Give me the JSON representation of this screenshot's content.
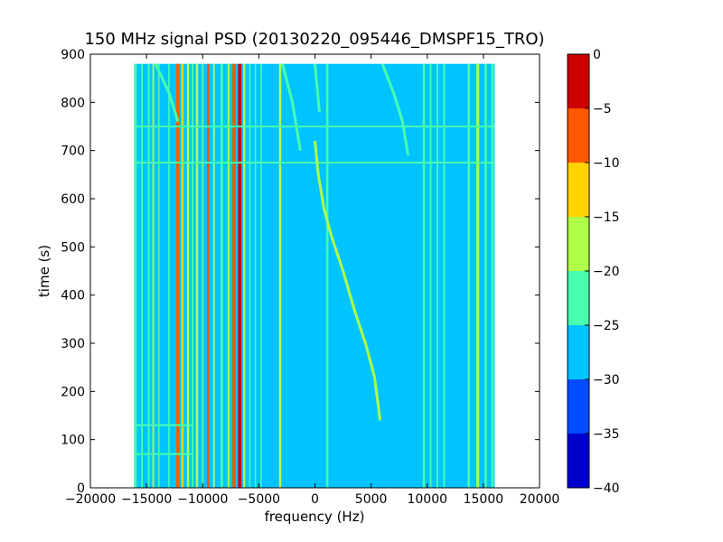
{
  "chart_data": {
    "type": "heatmap",
    "title": "150 MHz signal PSD (20130220_095446_DMSPF15_TRO)",
    "xlabel": "frequency (Hz)",
    "ylabel": "time (s)",
    "xlim": [
      -20000,
      20000
    ],
    "ylim": [
      0,
      900
    ],
    "xticks": [
      -20000,
      -15000,
      -10000,
      -5000,
      0,
      5000,
      10000,
      15000,
      20000
    ],
    "xtick_labels": [
      "−20000",
      "−15000",
      "−10000",
      "−5000",
      "0",
      "5000",
      "10000",
      "15000",
      "20000"
    ],
    "yticks": [
      0,
      100,
      200,
      300,
      400,
      500,
      600,
      700,
      800,
      900
    ],
    "ytick_labels": [
      "0",
      "100",
      "200",
      "300",
      "400",
      "500",
      "600",
      "700",
      "800",
      "900"
    ],
    "data_extent": {
      "x": [
        -16000,
        16000
      ],
      "y": [
        0,
        880
      ]
    },
    "background_level": -27.5,
    "colorbar": {
      "levels": [
        -40,
        -35,
        -30,
        -25,
        -20,
        -15,
        -10,
        -5,
        0
      ],
      "tick_labels": [
        "−40",
        "−35",
        "−30",
        "−25",
        "−20",
        "−15",
        "−10",
        "−5",
        "0"
      ],
      "colors": [
        "#0000cd",
        "#004cff",
        "#00c4ff",
        "#48ffae",
        "#b0ff48",
        "#ffd200",
        "#ff5800",
        "#cd0000"
      ]
    },
    "vertical_lines": [
      {
        "x": -16000,
        "w": 250,
        "level": -22.5
      },
      {
        "x": -15400,
        "w": 150,
        "level": -22.5
      },
      {
        "x": -14800,
        "w": 150,
        "level": -22.5
      },
      {
        "x": -14400,
        "w": 150,
        "level": -17.5
      },
      {
        "x": -13900,
        "w": 120,
        "level": -22.5
      },
      {
        "x": -13000,
        "w": 120,
        "level": -22.5
      },
      {
        "x": -12200,
        "w": 300,
        "level": -7.5
      },
      {
        "x": -11800,
        "w": 200,
        "level": -12.5
      },
      {
        "x": -11300,
        "w": 200,
        "level": -17.5
      },
      {
        "x": -10900,
        "w": 150,
        "level": -22.5
      },
      {
        "x": -10500,
        "w": 200,
        "level": -17.5
      },
      {
        "x": -10000,
        "w": 150,
        "level": -22.5
      },
      {
        "x": -9500,
        "w": 250,
        "level": -7.5
      },
      {
        "x": -9000,
        "w": 150,
        "level": -17.5
      },
      {
        "x": -8300,
        "w": 200,
        "level": -22.5
      },
      {
        "x": -7700,
        "w": 150,
        "level": -17.5
      },
      {
        "x": -7200,
        "w": 300,
        "level": -7.5
      },
      {
        "x": -6700,
        "w": 300,
        "level": -2.5
      },
      {
        "x": -6300,
        "w": 200,
        "level": -17.5
      },
      {
        "x": -5800,
        "w": 120,
        "level": -22.5
      },
      {
        "x": -5300,
        "w": 120,
        "level": -22.5
      },
      {
        "x": -4800,
        "w": 120,
        "level": -22.5
      },
      {
        "x": -3100,
        "w": 200,
        "level": -17.5
      },
      {
        "x": 1100,
        "w": 200,
        "level": -22.5
      },
      {
        "x": 9700,
        "w": 200,
        "level": -22.5
      },
      {
        "x": 10300,
        "w": 150,
        "level": -22.5
      },
      {
        "x": 10900,
        "w": 150,
        "level": -22.5
      },
      {
        "x": 11500,
        "w": 150,
        "level": -22.5
      },
      {
        "x": 13700,
        "w": 200,
        "level": -22.5
      },
      {
        "x": 14500,
        "w": 250,
        "level": -17.5
      },
      {
        "x": 15200,
        "w": 200,
        "level": -22.5
      },
      {
        "x": 15800,
        "w": 200,
        "level": -22.5
      }
    ],
    "horizontal_lines": [
      {
        "y": 750,
        "x0": -16000,
        "x1": 16000,
        "level": -22.5
      },
      {
        "y": 675,
        "x0": -16000,
        "x1": 16000,
        "level": -22.5
      },
      {
        "y": 130,
        "x0": -16000,
        "x1": -11000,
        "level": -22.5
      },
      {
        "y": 70,
        "x0": -16000,
        "x1": -11000,
        "level": -22.5
      }
    ],
    "traces": [
      {
        "name": "",
        "level": -17.5,
        "points": [
          [
            0,
            720
          ],
          [
            300,
            650
          ],
          [
            800,
            580
          ],
          [
            1500,
            520
          ],
          [
            2500,
            450
          ],
          [
            3500,
            370
          ],
          [
            4500,
            300
          ],
          [
            5300,
            230
          ],
          [
            5800,
            140
          ]
        ]
      },
      {
        "name": "",
        "level": -22.5,
        "points": [
          [
            -14200,
            880
          ],
          [
            -13000,
            820
          ],
          [
            -12200,
            760
          ]
        ]
      },
      {
        "name": "",
        "level": -22.5,
        "points": [
          [
            -2900,
            880
          ],
          [
            -2000,
            800
          ],
          [
            -1300,
            700
          ]
        ]
      },
      {
        "name": "",
        "level": -22.5,
        "points": [
          [
            0,
            880
          ],
          [
            200,
            830
          ],
          [
            400,
            780
          ]
        ]
      },
      {
        "name": "",
        "level": -22.5,
        "points": [
          [
            6000,
            880
          ],
          [
            7000,
            820
          ],
          [
            7800,
            760
          ],
          [
            8300,
            690
          ]
        ]
      }
    ]
  }
}
